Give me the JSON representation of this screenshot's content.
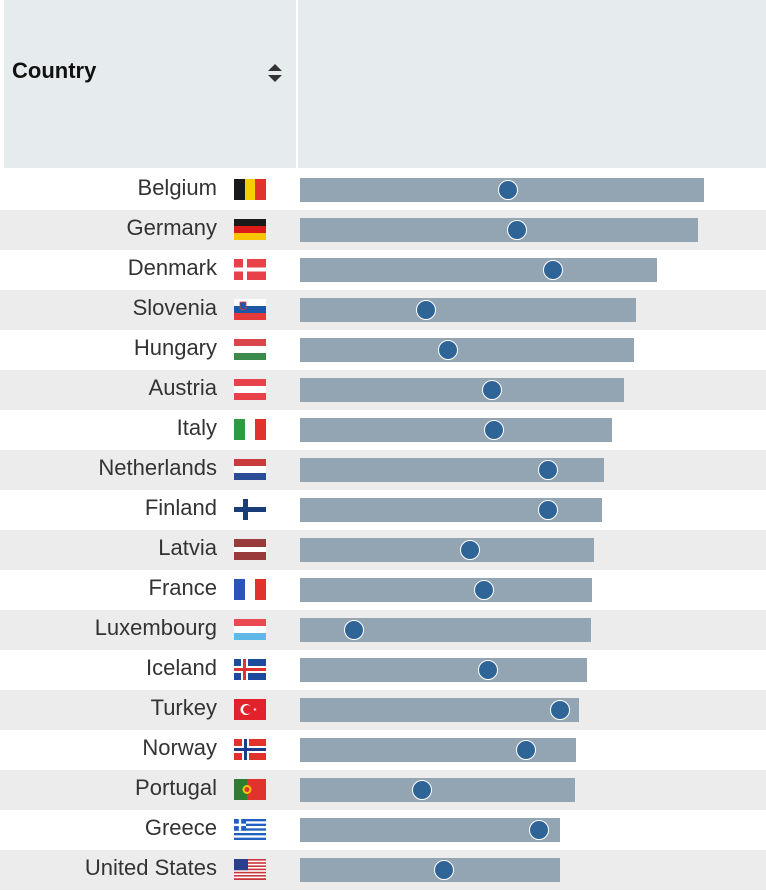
{
  "header": {
    "country_label": "Country",
    "sort_icon": "sort-updown-icon"
  },
  "chart_data": {
    "type": "bar",
    "description_units": "bar value and dot value on a 0-100 scale",
    "xlim": [
      0,
      100
    ],
    "categories": [
      "Belgium",
      "Germany",
      "Denmark",
      "Slovenia",
      "Hungary",
      "Austria",
      "Italy",
      "Netherlands",
      "Finland",
      "Latvia",
      "France",
      "Luxembourg",
      "Iceland",
      "Turkey",
      "Norway",
      "Portugal",
      "Greece",
      "United States"
    ],
    "series": [
      {
        "name": "bar",
        "values": [
          86.3,
          85.0,
          76.3,
          71.8,
          71.4,
          69.2,
          66.7,
          65.0,
          64.5,
          62.8,
          62.4,
          62.2,
          61.3,
          59.6,
          59.0,
          58.8,
          55.6,
          55.6
        ]
      },
      {
        "name": "dot",
        "values": [
          44.4,
          46.4,
          54.1,
          26.9,
          31.6,
          41.0,
          41.5,
          53.0,
          53.0,
          36.3,
          39.3,
          11.5,
          40.2,
          55.6,
          48.3,
          26.1,
          51.1,
          30.8
        ]
      }
    ],
    "flags": [
      "belgium-flag-icon",
      "germany-flag-icon",
      "denmark-flag-icon",
      "slovenia-flag-icon",
      "hungary-flag-icon",
      "austria-flag-icon",
      "italy-flag-icon",
      "netherlands-flag-icon",
      "finland-flag-icon",
      "latvia-flag-icon",
      "france-flag-icon",
      "luxembourg-flag-icon",
      "iceland-flag-icon",
      "turkey-flag-icon",
      "norway-flag-icon",
      "portugal-flag-icon",
      "greece-flag-icon",
      "united-states-flag-icon"
    ]
  },
  "colors": {
    "bar": "#93a5b2",
    "dot": "#2f6496",
    "header_bg": "#e6eced",
    "alt_row": "#ececec"
  }
}
